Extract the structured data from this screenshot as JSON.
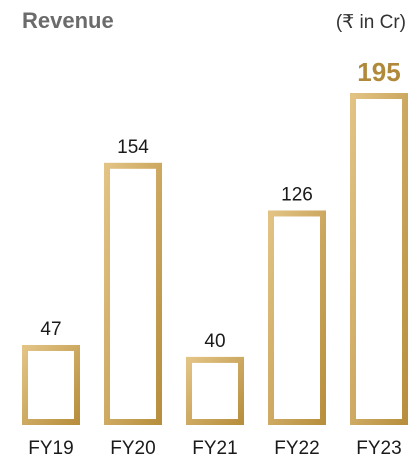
{
  "colors": {
    "bar_light": "#e2c384",
    "bar_dark": "#b88f3e",
    "highlight": "#b08a3a"
  },
  "chart_data": {
    "type": "bar",
    "title": "Revenue",
    "unit": "(₹ in Cr)",
    "categories": [
      "FY19",
      "FY20",
      "FY21",
      "FY22",
      "FY23"
    ],
    "values": [
      47,
      154,
      40,
      126,
      195
    ],
    "highlight_category": "FY23",
    "ylim": [
      0,
      195
    ],
    "grid": false,
    "legend": "none"
  }
}
